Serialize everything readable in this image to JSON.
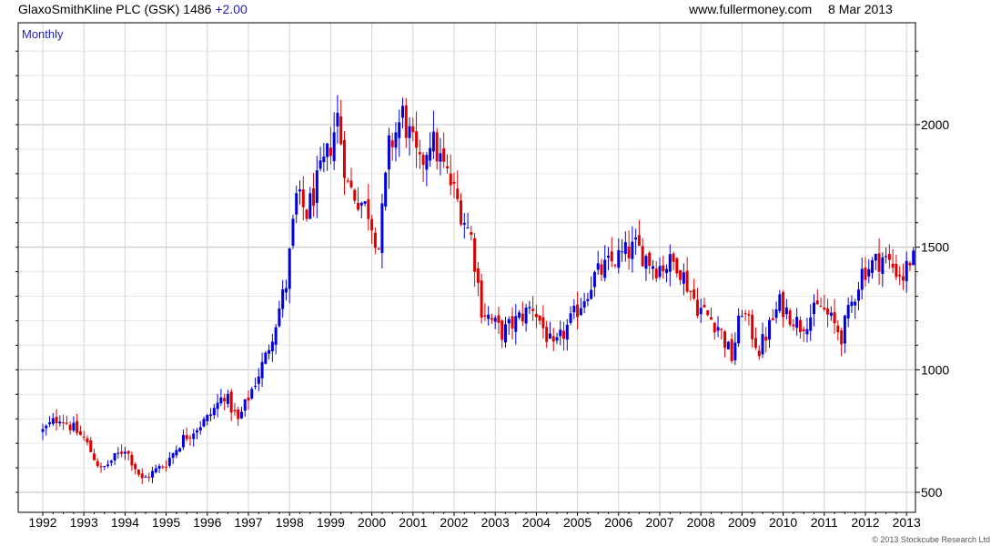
{
  "header": {
    "company": "GlaxoSmithKline PLC (GSK)",
    "price": "1486",
    "change": "+2.00",
    "website": "www.fullermoney.com",
    "date": "8 Mar 2013"
  },
  "copyright": "© 2013 Stockcube Research Ltd",
  "colors": {
    "up": "#0000dd",
    "down": "#dd0000",
    "grid": "#c8c8c8",
    "accent": "#1f1fbf"
  },
  "chart_data": {
    "type": "candlestick",
    "period_label": "Monthly",
    "title": "GlaxoSmithKline PLC (GSK)",
    "last_price": 1486,
    "last_change": 2.0,
    "y_ticks": [
      500,
      1000,
      1500,
      2000
    ],
    "ylim": [
      450,
      2370
    ],
    "y_scale": "linear",
    "x_ticks": [
      "1992",
      "1993",
      "1994",
      "1995",
      "1996",
      "1997",
      "1998",
      "1999",
      "2000",
      "2001",
      "2002",
      "2003",
      "2004",
      "2005",
      "2006",
      "2007",
      "2008",
      "2009",
      "2010",
      "2011",
      "2012",
      "2013"
    ],
    "grid": true,
    "axis_position": "right",
    "close_anchors": [
      [
        "1992-01",
        750
      ],
      [
        "1992-06",
        810
      ],
      [
        "1993-01",
        720
      ],
      [
        "1993-06",
        590
      ],
      [
        "1994-01",
        680
      ],
      [
        "1994-06",
        550
      ],
      [
        "1995-01",
        620
      ],
      [
        "1995-06",
        720
      ],
      [
        "1996-01",
        800
      ],
      [
        "1996-06",
        900
      ],
      [
        "1996-10",
        790
      ],
      [
        "1997-06",
        1050
      ],
      [
        "1997-12",
        1350
      ],
      [
        "1998-03",
        1700
      ],
      [
        "1998-06",
        1640
      ],
      [
        "1998-12",
        1870
      ],
      [
        "1999-03",
        2030
      ],
      [
        "1999-06",
        1750
      ],
      [
        "1999-12",
        1650
      ],
      [
        "2000-03",
        1500
      ],
      [
        "2000-06",
        1900
      ],
      [
        "2000-10",
        2040
      ],
      [
        "2001-03",
        1820
      ],
      [
        "2001-06",
        1950
      ],
      [
        "2001-12",
        1760
      ],
      [
        "2002-06",
        1540
      ],
      [
        "2002-09",
        1250
      ],
      [
        "2003-03",
        1150
      ],
      [
        "2003-12",
        1260
      ],
      [
        "2004-06",
        1080
      ],
      [
        "2004-12",
        1220
      ],
      [
        "2005-06",
        1380
      ],
      [
        "2005-12",
        1450
      ],
      [
        "2006-06",
        1500
      ],
      [
        "2006-12",
        1420
      ],
      [
        "2007-06",
        1440
      ],
      [
        "2007-12",
        1260
      ],
      [
        "2008-06",
        1180
      ],
      [
        "2008-10",
        1050
      ],
      [
        "2009-01",
        1250
      ],
      [
        "2009-06",
        1080
      ],
      [
        "2009-12",
        1270
      ],
      [
        "2010-06",
        1180
      ],
      [
        "2010-12",
        1260
      ],
      [
        "2011-06",
        1140
      ],
      [
        "2011-12",
        1400
      ],
      [
        "2012-06",
        1460
      ],
      [
        "2012-12",
        1380
      ],
      [
        "2013-03",
        1486
      ]
    ]
  }
}
